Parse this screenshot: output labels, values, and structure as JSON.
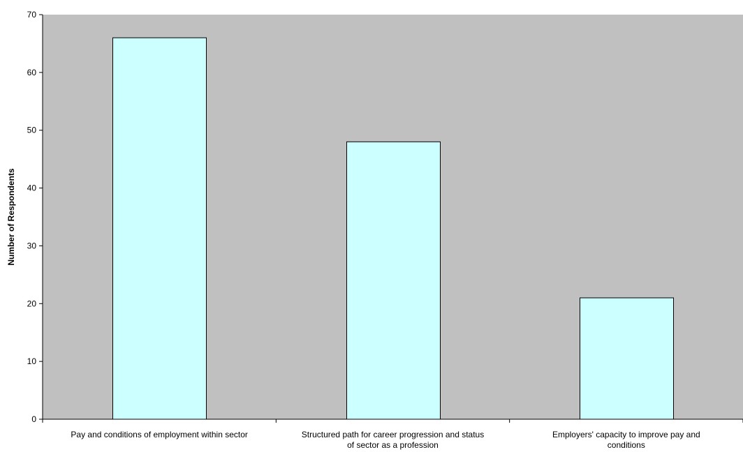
{
  "chart_data": {
    "type": "bar",
    "title": "",
    "xlabel": "",
    "ylabel": "Number of Respondents",
    "ylim": [
      0,
      70
    ],
    "yticks": [
      0,
      10,
      20,
      30,
      40,
      50,
      60,
      70
    ],
    "grid": false,
    "categories": [
      [
        "Pay and conditions of employment within sector"
      ],
      [
        "Structured path for career progression and status",
        "of sector as a profession"
      ],
      [
        "Employers' capacity to improve pay and",
        "conditions"
      ]
    ],
    "values": [
      66,
      48,
      21
    ],
    "colors": {
      "plot_background": "#c0c0c0",
      "bar_fill": "#ccffff",
      "bar_stroke": "#000000",
      "axis": "#000000"
    }
  }
}
